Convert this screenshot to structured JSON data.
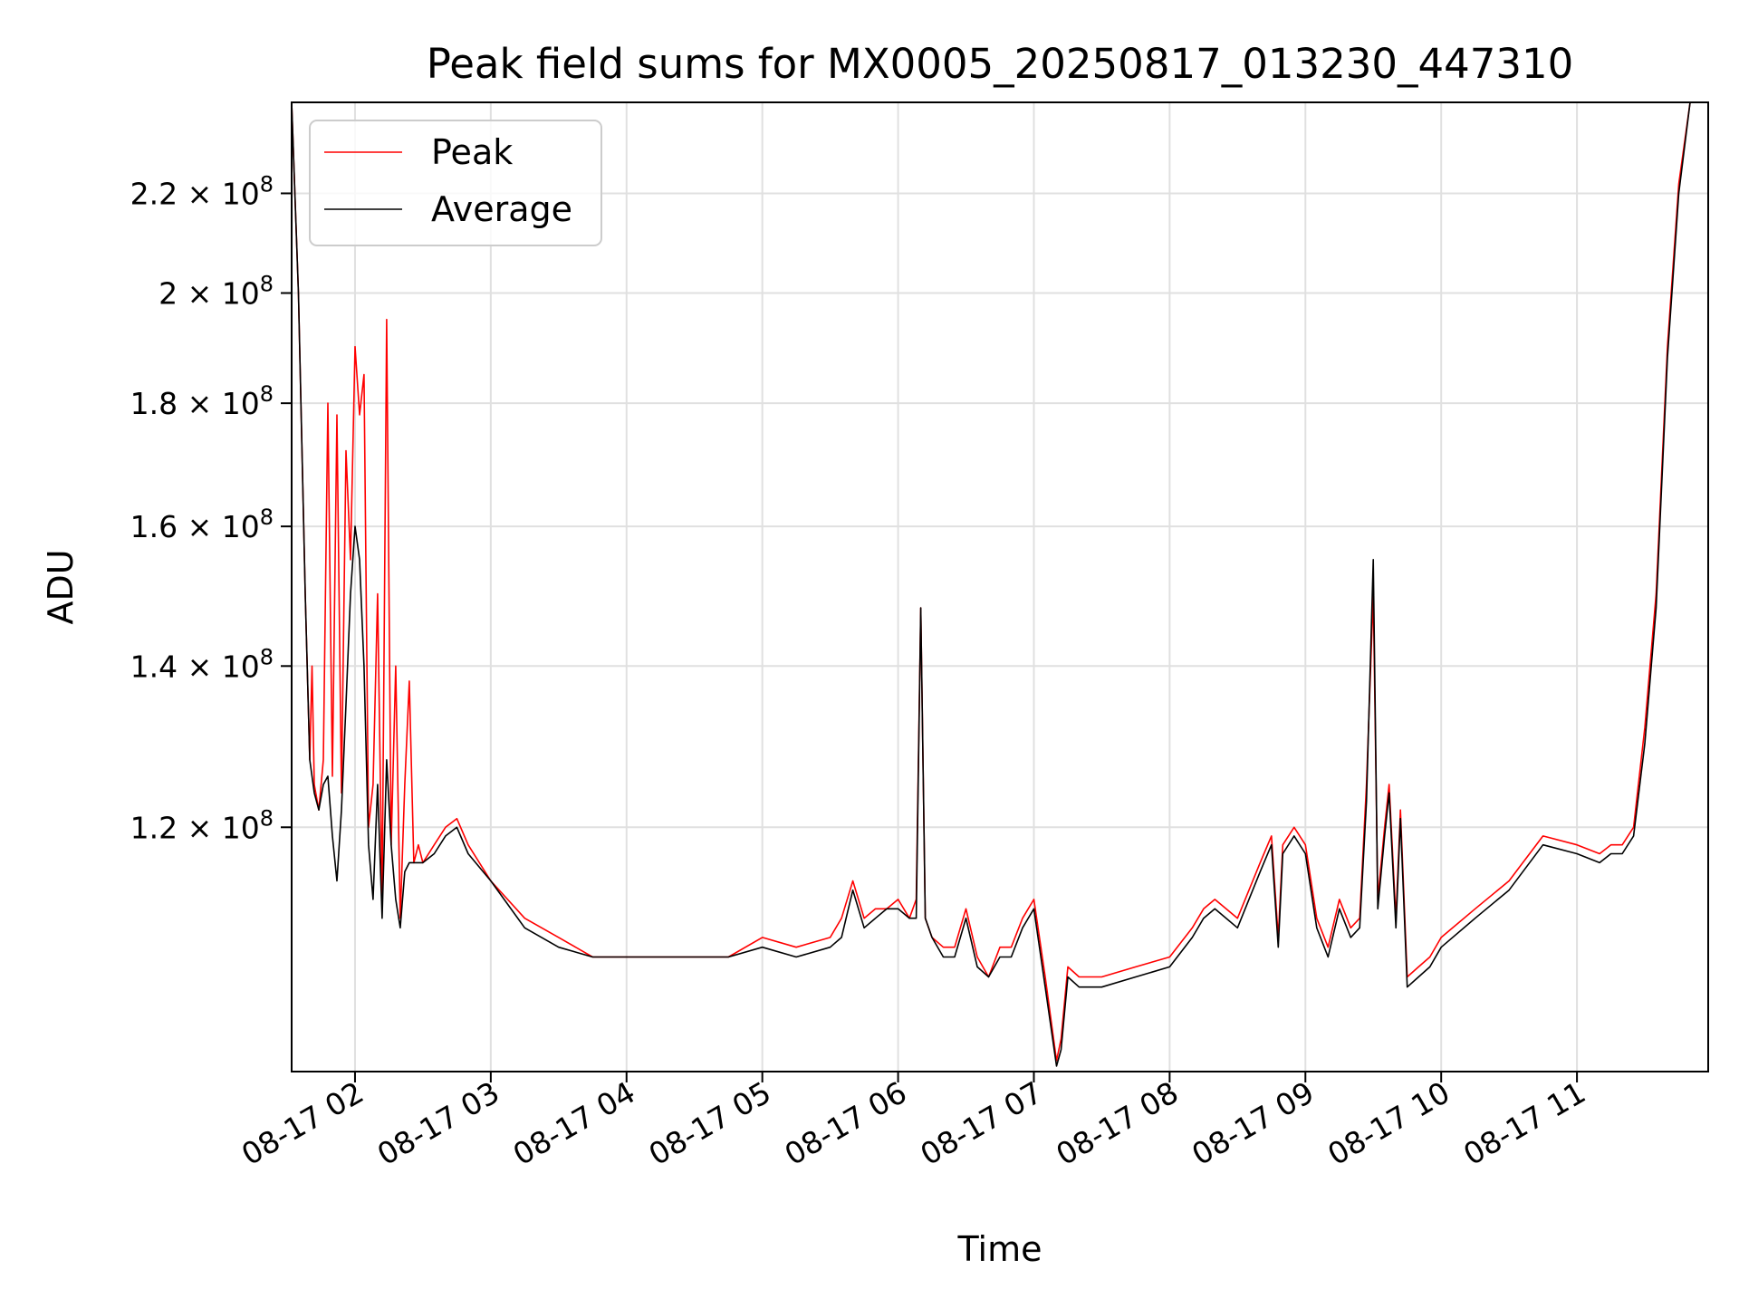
{
  "chart_data": {
    "type": "line",
    "title": "Peak field sums for MX0005_20250817_013230_447310",
    "xlabel": "Time",
    "ylabel": "ADU",
    "y_scale": "log",
    "ylim": [
      95000000,
      240000000
    ],
    "xlim": [
      "2025-08-17 01:32",
      "2025-08-17 11:58"
    ],
    "grid": true,
    "legend_position": "top-left",
    "x_tick_labels": [
      "08-17 02",
      "08-17 03",
      "08-17 04",
      "08-17 05",
      "08-17 06",
      "08-17 07",
      "08-17 08",
      "08-17 09",
      "08-17 10",
      "08-17 11"
    ],
    "x_tick_values": [
      "2025-08-17 02:00",
      "2025-08-17 03:00",
      "2025-08-17 04:00",
      "2025-08-17 05:00",
      "2025-08-17 06:00",
      "2025-08-17 07:00",
      "2025-08-17 08:00",
      "2025-08-17 09:00",
      "2025-08-17 10:00",
      "2025-08-17 11:00"
    ],
    "y_ticks": [
      {
        "value": 120000000,
        "mantissa": "1.2",
        "exponent": "8"
      },
      {
        "value": 140000000,
        "mantissa": "1.4",
        "exponent": "8"
      },
      {
        "value": 160000000,
        "mantissa": "1.6",
        "exponent": "8"
      },
      {
        "value": 180000000,
        "mantissa": "1.8",
        "exponent": "8"
      },
      {
        "value": 200000000,
        "mantissa": "2",
        "exponent": "8"
      },
      {
        "value": 220000000,
        "mantissa": "2.2",
        "exponent": "8"
      }
    ],
    "series": [
      {
        "name": "Peak",
        "color": "#ff0000",
        "x": [
          "2025-08-17 01:32",
          "2025-08-17 01:35",
          "2025-08-17 01:38",
          "2025-08-17 01:40",
          "2025-08-17 01:41",
          "2025-08-17 01:42",
          "2025-08-17 01:44",
          "2025-08-17 01:46",
          "2025-08-17 01:48",
          "2025-08-17 01:50",
          "2025-08-17 01:52",
          "2025-08-17 01:54",
          "2025-08-17 01:56",
          "2025-08-17 01:58",
          "2025-08-17 02:00",
          "2025-08-17 02:02",
          "2025-08-17 02:04",
          "2025-08-17 02:06",
          "2025-08-17 02:08",
          "2025-08-17 02:10",
          "2025-08-17 02:12",
          "2025-08-17 02:14",
          "2025-08-17 02:16",
          "2025-08-17 02:18",
          "2025-08-17 02:20",
          "2025-08-17 02:22",
          "2025-08-17 02:24",
          "2025-08-17 02:26",
          "2025-08-17 02:28",
          "2025-08-17 02:30",
          "2025-08-17 02:35",
          "2025-08-17 02:40",
          "2025-08-17 02:45",
          "2025-08-17 02:50",
          "2025-08-17 03:00",
          "2025-08-17 03:15",
          "2025-08-17 03:30",
          "2025-08-17 03:45",
          "2025-08-17 04:00",
          "2025-08-17 04:15",
          "2025-08-17 04:30",
          "2025-08-17 04:45",
          "2025-08-17 05:00",
          "2025-08-17 05:15",
          "2025-08-17 05:30",
          "2025-08-17 05:35",
          "2025-08-17 05:40",
          "2025-08-17 05:45",
          "2025-08-17 05:50",
          "2025-08-17 05:55",
          "2025-08-17 06:00",
          "2025-08-17 06:05",
          "2025-08-17 06:08",
          "2025-08-17 06:10",
          "2025-08-17 06:12",
          "2025-08-17 06:15",
          "2025-08-17 06:20",
          "2025-08-17 06:25",
          "2025-08-17 06:30",
          "2025-08-17 06:35",
          "2025-08-17 06:40",
          "2025-08-17 06:45",
          "2025-08-17 06:50",
          "2025-08-17 06:55",
          "2025-08-17 07:00",
          "2025-08-17 07:05",
          "2025-08-17 07:10",
          "2025-08-17 07:12",
          "2025-08-17 07:15",
          "2025-08-17 07:20",
          "2025-08-17 07:30",
          "2025-08-17 07:45",
          "2025-08-17 08:00",
          "2025-08-17 08:10",
          "2025-08-17 08:15",
          "2025-08-17 08:20",
          "2025-08-17 08:30",
          "2025-08-17 08:40",
          "2025-08-17 08:45",
          "2025-08-17 08:48",
          "2025-08-17 08:50",
          "2025-08-17 08:55",
          "2025-08-17 09:00",
          "2025-08-17 09:05",
          "2025-08-17 09:10",
          "2025-08-17 09:15",
          "2025-08-17 09:20",
          "2025-08-17 09:24",
          "2025-08-17 09:27",
          "2025-08-17 09:30",
          "2025-08-17 09:32",
          "2025-08-17 09:35",
          "2025-08-17 09:37",
          "2025-08-17 09:40",
          "2025-08-17 09:42",
          "2025-08-17 09:45",
          "2025-08-17 09:50",
          "2025-08-17 09:55",
          "2025-08-17 10:00",
          "2025-08-17 10:15",
          "2025-08-17 10:30",
          "2025-08-17 10:45",
          "2025-08-17 11:00",
          "2025-08-17 11:10",
          "2025-08-17 11:15",
          "2025-08-17 11:20",
          "2025-08-17 11:25",
          "2025-08-17 11:30",
          "2025-08-17 11:35",
          "2025-08-17 11:40",
          "2025-08-17 11:45",
          "2025-08-17 11:50",
          "2025-08-17 11:55",
          "2025-08-17 11:58"
        ],
        "y": [
          240000000,
          200000000,
          150000000,
          128000000,
          140000000,
          125000000,
          122000000,
          128000000,
          180000000,
          126000000,
          178000000,
          124000000,
          172000000,
          155000000,
          190000000,
          178000000,
          185000000,
          120000000,
          125000000,
          150000000,
          112000000,
          195000000,
          118000000,
          140000000,
          110000000,
          125000000,
          138000000,
          116000000,
          118000000,
          116000000,
          118000000,
          120000000,
          121000000,
          118000000,
          114000000,
          110000000,
          108000000,
          106000000,
          106000000,
          106000000,
          106000000,
          106000000,
          108000000,
          107000000,
          108000000,
          110000000,
          114000000,
          110000000,
          111000000,
          111000000,
          112000000,
          110000000,
          112000000,
          148000000,
          110000000,
          108000000,
          107000000,
          107000000,
          111000000,
          106000000,
          104000000,
          107000000,
          107000000,
          110000000,
          112000000,
          104000000,
          96000000,
          98000000,
          105000000,
          104000000,
          104000000,
          105000000,
          106000000,
          109000000,
          111000000,
          112000000,
          110000000,
          116000000,
          119000000,
          108000000,
          118000000,
          120000000,
          118000000,
          110000000,
          107000000,
          112000000,
          109000000,
          110000000,
          125000000,
          150000000,
          112000000,
          120000000,
          125000000,
          110000000,
          122000000,
          104000000,
          105000000,
          106000000,
          108000000,
          111000000,
          114000000,
          119000000,
          118000000,
          117000000,
          118000000,
          118000000,
          120000000,
          132000000,
          150000000,
          190000000,
          222000000,
          240000000,
          240000000,
          240000000
        ]
      },
      {
        "name": "Average",
        "color": "#000000",
        "x": [
          "2025-08-17 01:32",
          "2025-08-17 01:35",
          "2025-08-17 01:38",
          "2025-08-17 01:40",
          "2025-08-17 01:42",
          "2025-08-17 01:44",
          "2025-08-17 01:46",
          "2025-08-17 01:48",
          "2025-08-17 01:50",
          "2025-08-17 01:52",
          "2025-08-17 01:54",
          "2025-08-17 01:56",
          "2025-08-17 01:58",
          "2025-08-17 02:00",
          "2025-08-17 02:02",
          "2025-08-17 02:04",
          "2025-08-17 02:06",
          "2025-08-17 02:08",
          "2025-08-17 02:10",
          "2025-08-17 02:12",
          "2025-08-17 02:14",
          "2025-08-17 02:16",
          "2025-08-17 02:18",
          "2025-08-17 02:20",
          "2025-08-17 02:22",
          "2025-08-17 02:24",
          "2025-08-17 02:26",
          "2025-08-17 02:28",
          "2025-08-17 02:30",
          "2025-08-17 02:35",
          "2025-08-17 02:40",
          "2025-08-17 02:45",
          "2025-08-17 02:50",
          "2025-08-17 03:00",
          "2025-08-17 03:15",
          "2025-08-17 03:30",
          "2025-08-17 03:45",
          "2025-08-17 04:00",
          "2025-08-17 04:15",
          "2025-08-17 04:30",
          "2025-08-17 04:45",
          "2025-08-17 05:00",
          "2025-08-17 05:15",
          "2025-08-17 05:30",
          "2025-08-17 05:35",
          "2025-08-17 05:40",
          "2025-08-17 05:45",
          "2025-08-17 05:50",
          "2025-08-17 05:55",
          "2025-08-17 06:00",
          "2025-08-17 06:05",
          "2025-08-17 06:08",
          "2025-08-17 06:10",
          "2025-08-17 06:12",
          "2025-08-17 06:15",
          "2025-08-17 06:20",
          "2025-08-17 06:25",
          "2025-08-17 06:30",
          "2025-08-17 06:35",
          "2025-08-17 06:40",
          "2025-08-17 06:45",
          "2025-08-17 06:50",
          "2025-08-17 06:55",
          "2025-08-17 07:00",
          "2025-08-17 07:05",
          "2025-08-17 07:10",
          "2025-08-17 07:12",
          "2025-08-17 07:15",
          "2025-08-17 07:20",
          "2025-08-17 07:30",
          "2025-08-17 07:45",
          "2025-08-17 08:00",
          "2025-08-17 08:10",
          "2025-08-17 08:15",
          "2025-08-17 08:20",
          "2025-08-17 08:30",
          "2025-08-17 08:40",
          "2025-08-17 08:45",
          "2025-08-17 08:48",
          "2025-08-17 08:50",
          "2025-08-17 08:55",
          "2025-08-17 09:00",
          "2025-08-17 09:05",
          "2025-08-17 09:10",
          "2025-08-17 09:15",
          "2025-08-17 09:20",
          "2025-08-17 09:24",
          "2025-08-17 09:27",
          "2025-08-17 09:30",
          "2025-08-17 09:32",
          "2025-08-17 09:35",
          "2025-08-17 09:37",
          "2025-08-17 09:40",
          "2025-08-17 09:42",
          "2025-08-17 09:45",
          "2025-08-17 09:50",
          "2025-08-17 09:55",
          "2025-08-17 10:00",
          "2025-08-17 10:15",
          "2025-08-17 10:30",
          "2025-08-17 10:45",
          "2025-08-17 11:00",
          "2025-08-17 11:10",
          "2025-08-17 11:15",
          "2025-08-17 11:20",
          "2025-08-17 11:25",
          "2025-08-17 11:30",
          "2025-08-17 11:35",
          "2025-08-17 11:40",
          "2025-08-17 11:45",
          "2025-08-17 11:50",
          "2025-08-17 11:55",
          "2025-08-17 11:58"
        ],
        "y": [
          240000000,
          200000000,
          150000000,
          128000000,
          124000000,
          122000000,
          125000000,
          126000000,
          119000000,
          114000000,
          122000000,
          135000000,
          150000000,
          160000000,
          155000000,
          140000000,
          118000000,
          112000000,
          125000000,
          110000000,
          128000000,
          118000000,
          112000000,
          109000000,
          115000000,
          116000000,
          116000000,
          116000000,
          116000000,
          117000000,
          119000000,
          120000000,
          117000000,
          114000000,
          109000000,
          107000000,
          106000000,
          106000000,
          106000000,
          106000000,
          106000000,
          107000000,
          106000000,
          107000000,
          108000000,
          113000000,
          109000000,
          110000000,
          111000000,
          111000000,
          110000000,
          110000000,
          148000000,
          110000000,
          108000000,
          106000000,
          106000000,
          110000000,
          105000000,
          104000000,
          106000000,
          106000000,
          109000000,
          111000000,
          103000000,
          95500000,
          97000000,
          104000000,
          103000000,
          103000000,
          104000000,
          105000000,
          108000000,
          110000000,
          111000000,
          109000000,
          115000000,
          118000000,
          107000000,
          117000000,
          119000000,
          117000000,
          109000000,
          106000000,
          111000000,
          108000000,
          109000000,
          123000000,
          155000000,
          111000000,
          119000000,
          124000000,
          109000000,
          121000000,
          103000000,
          104000000,
          105000000,
          107000000,
          110000000,
          113000000,
          118000000,
          117000000,
          116000000,
          117000000,
          117000000,
          119000000,
          130000000,
          148000000,
          188000000,
          220000000,
          240000000,
          240000000,
          240000000
        ]
      }
    ]
  }
}
